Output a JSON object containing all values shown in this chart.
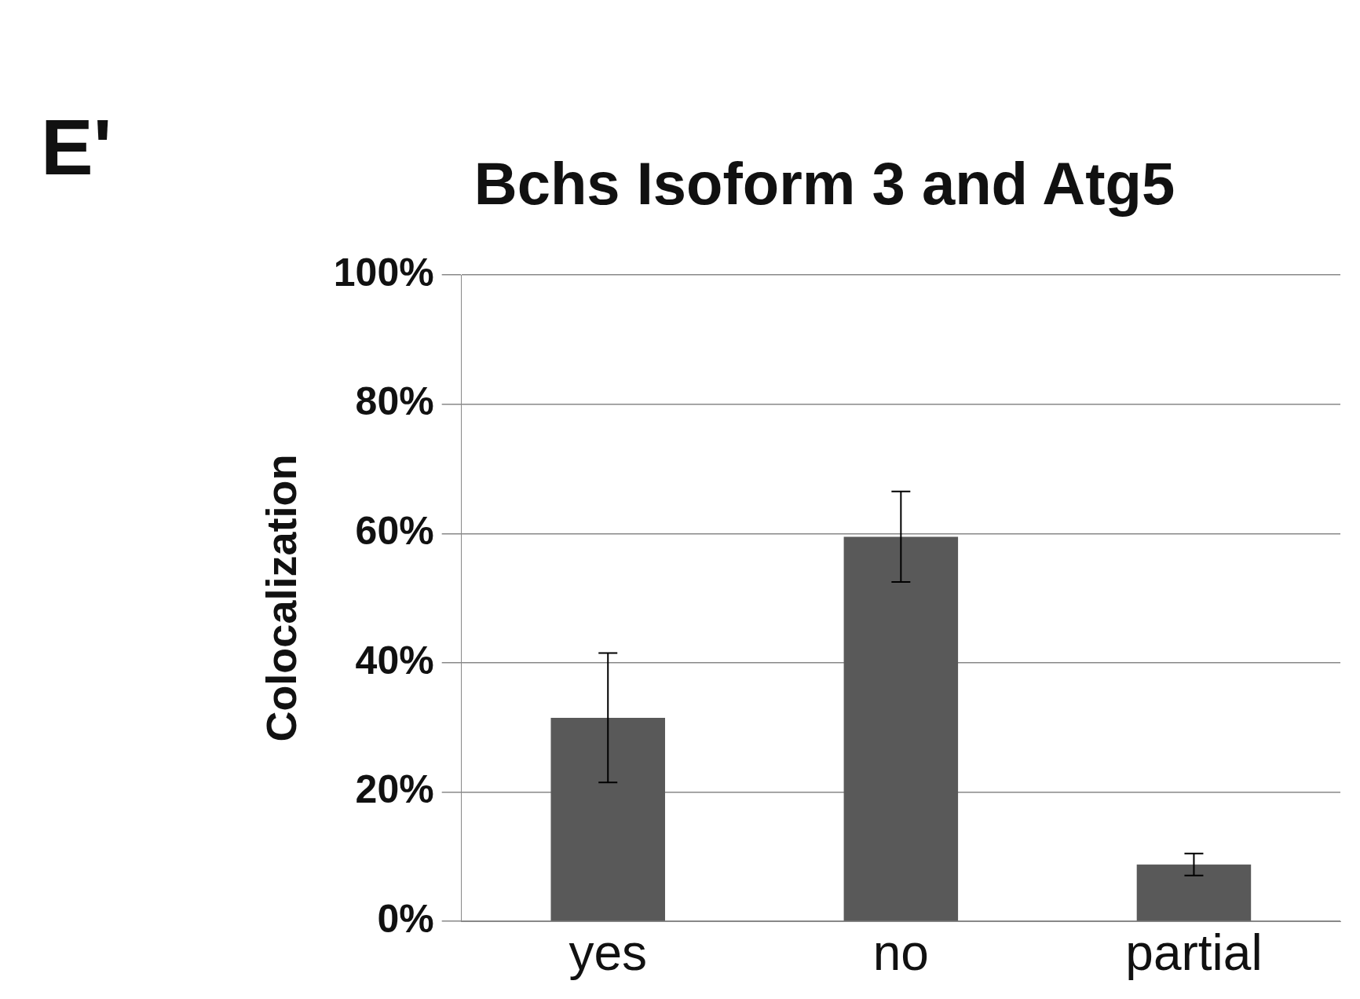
{
  "chart_data": {
    "type": "bar",
    "title": "Bchs Isoform 3 and Atg5",
    "ylabel": "Colocalization",
    "annotations": [
      "E'"
    ],
    "categories": [
      "yes",
      "no",
      "partial"
    ],
    "values": [
      31.5,
      59.5,
      8.8
    ],
    "errors": [
      10,
      7,
      1.7
    ],
    "color": "#595959",
    "ylim": [
      0,
      100
    ],
    "yticks": [
      {
        "value": 0,
        "label": "0%"
      },
      {
        "value": 20,
        "label": "20%"
      },
      {
        "value": 40,
        "label": "40%"
      },
      {
        "value": 60,
        "label": "60%"
      },
      {
        "value": 80,
        "label": "80%"
      },
      {
        "value": 100,
        "label": "100%"
      }
    ],
    "grid": "y",
    "legend": false
  }
}
